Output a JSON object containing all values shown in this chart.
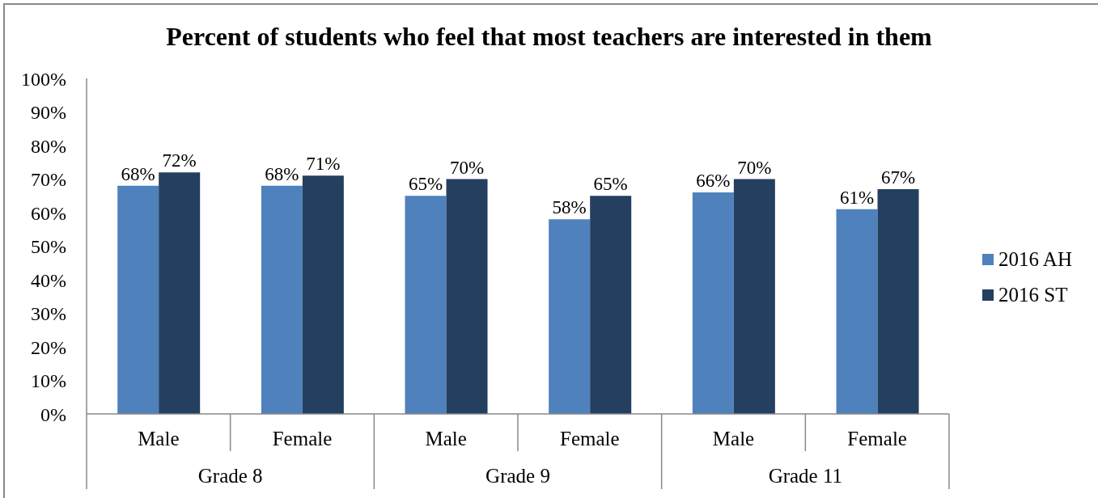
{
  "chart_data": {
    "type": "bar",
    "title": "Percent of students who feel that most teachers are interested in them",
    "categories": [
      "Male",
      "Female",
      "Male",
      "Female",
      "Male",
      "Female"
    ],
    "annotations": [
      "Grade 8",
      "Grade 9",
      "Grade 11"
    ],
    "series": [
      {
        "name": "2016 AH",
        "color": "#4f81bd",
        "values": [
          68,
          68,
          65,
          58,
          66,
          61
        ],
        "value_labels": [
          "68%",
          "68%",
          "65%",
          "58%",
          "66%",
          "61%"
        ]
      },
      {
        "name": "2016 ST",
        "color": "#243f60",
        "values": [
          72,
          71,
          70,
          65,
          70,
          67
        ],
        "value_labels": [
          "72%",
          "71%",
          "70%",
          "65%",
          "70%",
          "67%"
        ]
      }
    ],
    "ylim": [
      0,
      100
    ],
    "yticks": [
      {
        "value": 0,
        "label": "0%"
      },
      {
        "value": 10,
        "label": "10%"
      },
      {
        "value": 20,
        "label": "20%"
      },
      {
        "value": 30,
        "label": "30%"
      },
      {
        "value": 40,
        "label": "40%"
      },
      {
        "value": 50,
        "label": "50%"
      },
      {
        "value": 60,
        "label": "60%"
      },
      {
        "value": 70,
        "label": "70%"
      },
      {
        "value": 80,
        "label": "80%"
      },
      {
        "value": 90,
        "label": "90%"
      },
      {
        "value": 100,
        "label": "100%"
      }
    ],
    "legend": "right"
  }
}
